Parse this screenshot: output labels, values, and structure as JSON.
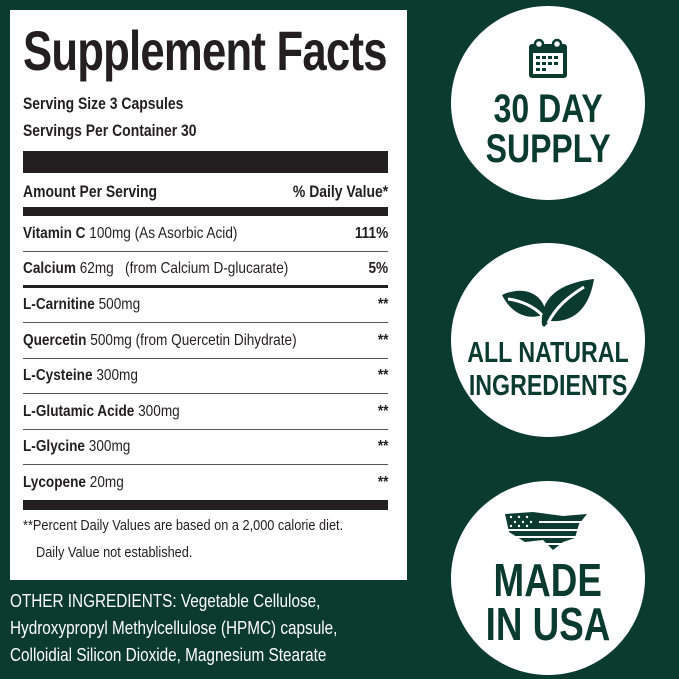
{
  "colors": {
    "background": "#0b3a2e",
    "panel": "#ffffff",
    "text": "#231f20"
  },
  "facts": {
    "title": "Supplement Facts",
    "serving_size": "Serving Size 3 Capsules",
    "servings_per_container": "Servings Per Container 30",
    "header_left": "Amount Per Serving",
    "header_right": "% Daily Value*",
    "rows": [
      {
        "name": "Vitamin C",
        "amount": "100mg (As Asorbic Acid)",
        "dv": "111%"
      },
      {
        "name": "Calcium",
        "amount": "62mg   (from Calcium D-glucarate)",
        "dv": "5%"
      },
      {
        "name": "L-Carnitine",
        "amount": "500mg",
        "dv": "**"
      },
      {
        "name": "Quercetin",
        "amount": "500mg (from Quercetin Dihydrate)",
        "dv": "**"
      },
      {
        "name": "L-Cysteine",
        "amount": "300mg",
        "dv": "**"
      },
      {
        "name": "L-Glutamic Acide",
        "amount": "300mg",
        "dv": "**"
      },
      {
        "name": "L-Glycine",
        "amount": "300mg",
        "dv": "**"
      },
      {
        "name": "Lycopene",
        "amount": "20mg",
        "dv": "**"
      }
    ],
    "footnote1": "**Percent Daily Values are based on a 2,000 calorie diet.",
    "footnote2": "Daily Value not established."
  },
  "other_ingredients": [
    "OTHER INGREDIENTS: Vegetable Cellulose,",
    "Hydroxypropyl Methylcellulose (HPMC) capsule,",
    "Colloidial Silicon Dioxide, Magnesium Stearate"
  ],
  "badges": [
    {
      "icon": "calendar-icon",
      "line1": "30 DAY",
      "line2": "SUPPLY"
    },
    {
      "icon": "leaves-icon",
      "line1": "ALL NATURAL",
      "line2": "INGREDIENTS"
    },
    {
      "icon": "usa-flag-map-icon",
      "line1": "MADE",
      "line2": "IN USA"
    }
  ]
}
